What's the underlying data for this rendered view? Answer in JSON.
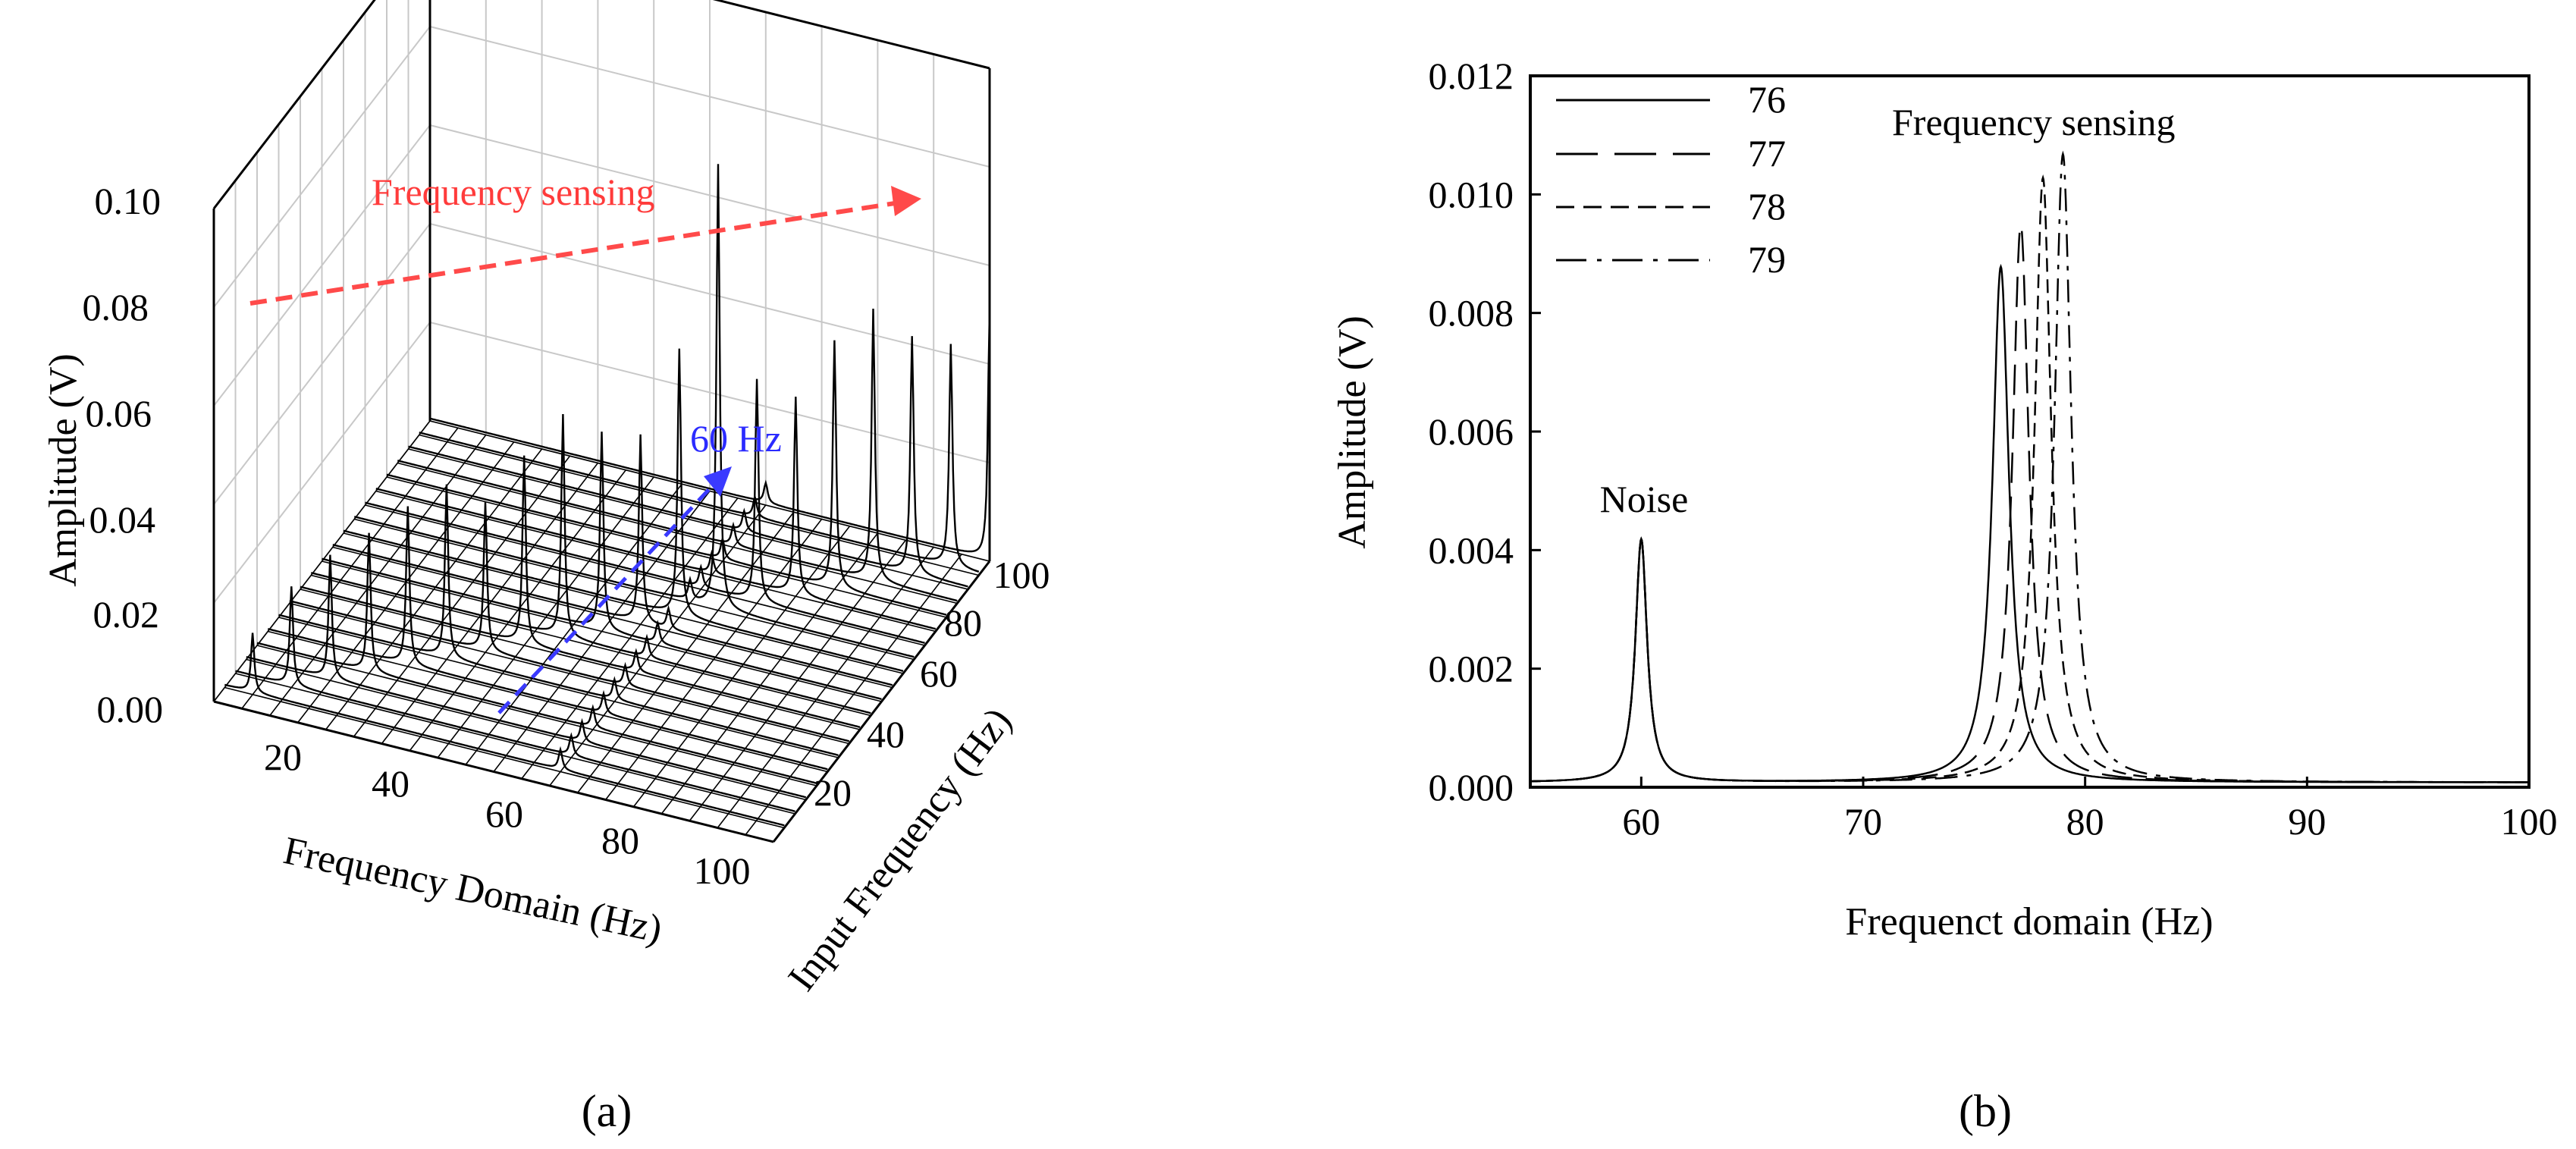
{
  "chart_data": [
    {
      "panel": "(a)",
      "type": "line",
      "subtype": "3d-waterfall",
      "zlabel": "Amplitude (V)",
      "xlabel": "Frequency Domain (Hz)",
      "ylabel": "Input Frequency (Hz)",
      "zlim": [
        0,
        0.1
      ],
      "z_ticks": [
        "0.00",
        "0.02",
        "0.04",
        "0.06",
        "0.08",
        "0.10"
      ],
      "x_ticks": [
        "20",
        "40",
        "60",
        "80",
        "100"
      ],
      "y_ticks": [
        "20",
        "40",
        "60",
        "80",
        "100"
      ],
      "input_frequencies": [
        5,
        10,
        15,
        20,
        25,
        30,
        35,
        40,
        45,
        50,
        55,
        60,
        65,
        70,
        75,
        80,
        85,
        90,
        95,
        100
      ],
      "peak_amplitudes": [
        0.012,
        0.02,
        0.025,
        0.028,
        0.032,
        0.035,
        0.03,
        0.038,
        0.045,
        0.04,
        0.038,
        0.05,
        0.09,
        0.045,
        0.04,
        0.05,
        0.055,
        0.048,
        0.045,
        0.05
      ],
      "noise_frequency": 60,
      "noise_amplitude": 0.004,
      "annotations": [
        {
          "text": "Frequency sensing",
          "color": "#ff3b3b"
        },
        {
          "text": "60 Hz",
          "color": "#2b2bff"
        }
      ]
    },
    {
      "panel": "(b)",
      "type": "line",
      "xlabel": "Frequenct domain (Hz)",
      "ylabel": "Amplitude (V)",
      "xlim": [
        55,
        100
      ],
      "ylim": [
        0,
        0.012
      ],
      "x_ticks": [
        "60",
        "70",
        "80",
        "90",
        "100"
      ],
      "y_ticks": [
        "0.000",
        "0.002",
        "0.004",
        "0.006",
        "0.008",
        "0.010",
        "0.012"
      ],
      "noise": {
        "center": 60,
        "amplitude": 0.0041
      },
      "series": [
        {
          "name": "76",
          "style": "solid",
          "peak_frequency": 76.2,
          "peak_amplitude": 0.0087
        },
        {
          "name": "77",
          "style": "long-dash",
          "peak_frequency": 77.1,
          "peak_amplitude": 0.0094
        },
        {
          "name": "78",
          "style": "short-dash",
          "peak_frequency": 78.1,
          "peak_amplitude": 0.0102
        },
        {
          "name": "79",
          "style": "dash-dot",
          "peak_frequency": 79.0,
          "peak_amplitude": 0.0106
        }
      ],
      "annotations": [
        {
          "text": "Frequency sensing"
        },
        {
          "text": "Noise"
        }
      ]
    }
  ]
}
